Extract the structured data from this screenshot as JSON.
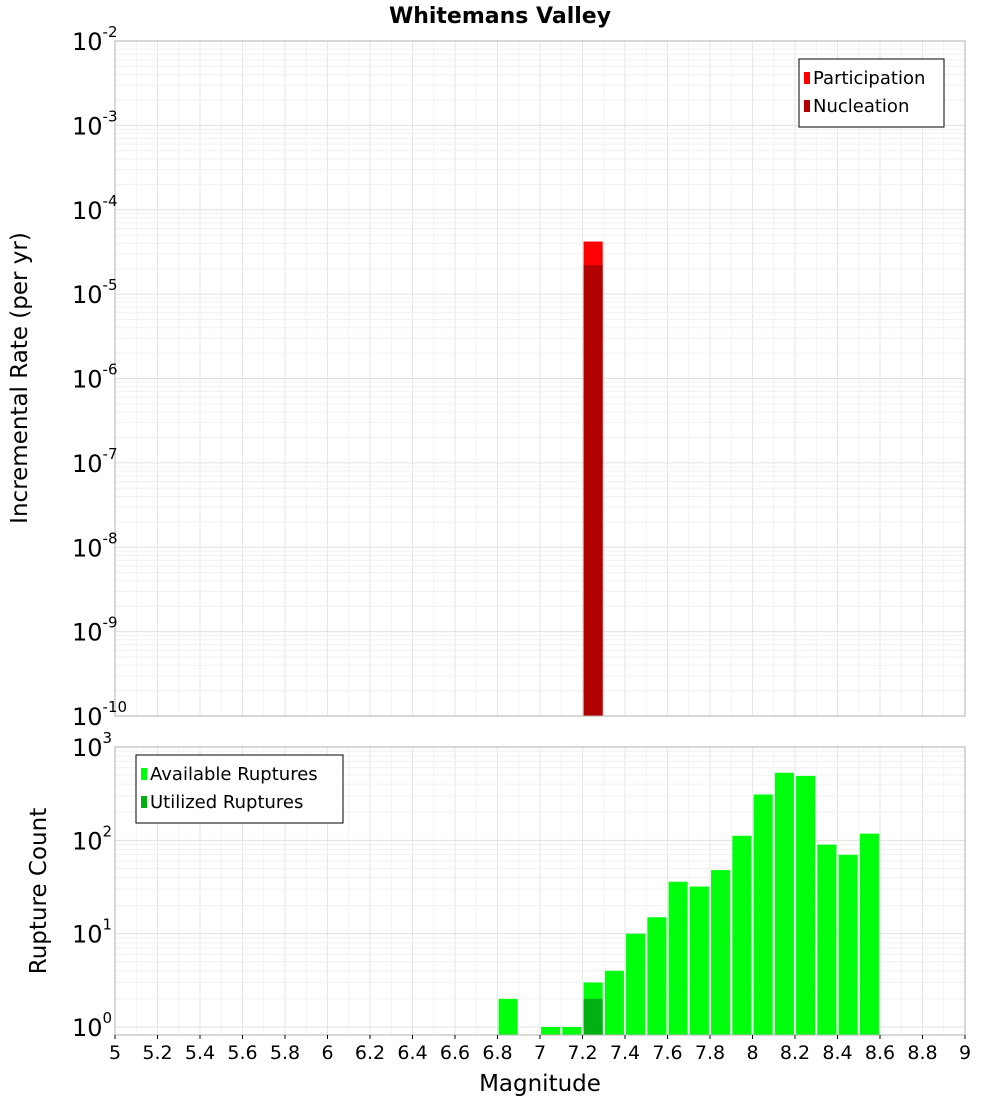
{
  "chart_data": [
    {
      "type": "bar",
      "title": "Whitemans Valley",
      "xlabel": "",
      "ylabel": "Incremental Rate (per yr)",
      "yscale": "log",
      "ylim_exponents": [
        -10,
        -2
      ],
      "y_tick_labels": [
        {
          "base": "10",
          "exp": "-2"
        },
        {
          "base": "10",
          "exp": "-3"
        },
        {
          "base": "10",
          "exp": "-4"
        },
        {
          "base": "10",
          "exp": "-5"
        },
        {
          "base": "10",
          "exp": "-6"
        },
        {
          "base": "10",
          "exp": "-7"
        },
        {
          "base": "10",
          "exp": "-8"
        },
        {
          "base": "10",
          "exp": "-9"
        },
        {
          "base": "10",
          "exp": "-10"
        }
      ],
      "xlim": [
        5,
        9
      ],
      "grid": true,
      "legend_position": "top-right",
      "series": [
        {
          "name": "Participation",
          "color": "#ff0000",
          "x": [
            7.25
          ],
          "values": [
            4.2e-05
          ]
        },
        {
          "name": "Nucleation",
          "color": "#b00000",
          "x": [
            7.25
          ],
          "values": [
            2.2e-05
          ]
        }
      ]
    },
    {
      "type": "bar",
      "title": "",
      "xlabel": "Magnitude",
      "ylabel": "Rupture Count",
      "yscale": "log",
      "ylim_exponents": [
        0,
        3
      ],
      "y_tick_labels": [
        {
          "base": "10",
          "exp": "3"
        },
        {
          "base": "10",
          "exp": "2"
        },
        {
          "base": "10",
          "exp": "1"
        },
        {
          "base": "10",
          "exp": "0"
        }
      ],
      "xlim": [
        5,
        9
      ],
      "x_tick_labels": [
        "5",
        "5.2",
        "5.4",
        "5.6",
        "5.8",
        "6",
        "6.2",
        "6.4",
        "6.6",
        "6.8",
        "7",
        "7.2",
        "7.4",
        "7.6",
        "7.8",
        "8",
        "8.2",
        "8.4",
        "8.6",
        "8.8",
        "9"
      ],
      "grid": true,
      "legend_position": "top-left",
      "series": [
        {
          "name": "Available Ruptures",
          "color": "#00ff0c",
          "x": [
            6.85,
            7.05,
            7.15,
            7.25,
            7.35,
            7.45,
            7.55,
            7.65,
            7.75,
            7.85,
            7.95,
            8.05,
            8.15,
            8.25,
            8.35,
            8.45,
            8.55
          ],
          "values": [
            2,
            1,
            1,
            3,
            4,
            10,
            15,
            36,
            32,
            48,
            112,
            310,
            530,
            490,
            90,
            70,
            118
          ]
        },
        {
          "name": "Utilized Ruptures",
          "color": "#00b010",
          "x": [
            7.25
          ],
          "values": [
            2
          ]
        }
      ]
    }
  ]
}
